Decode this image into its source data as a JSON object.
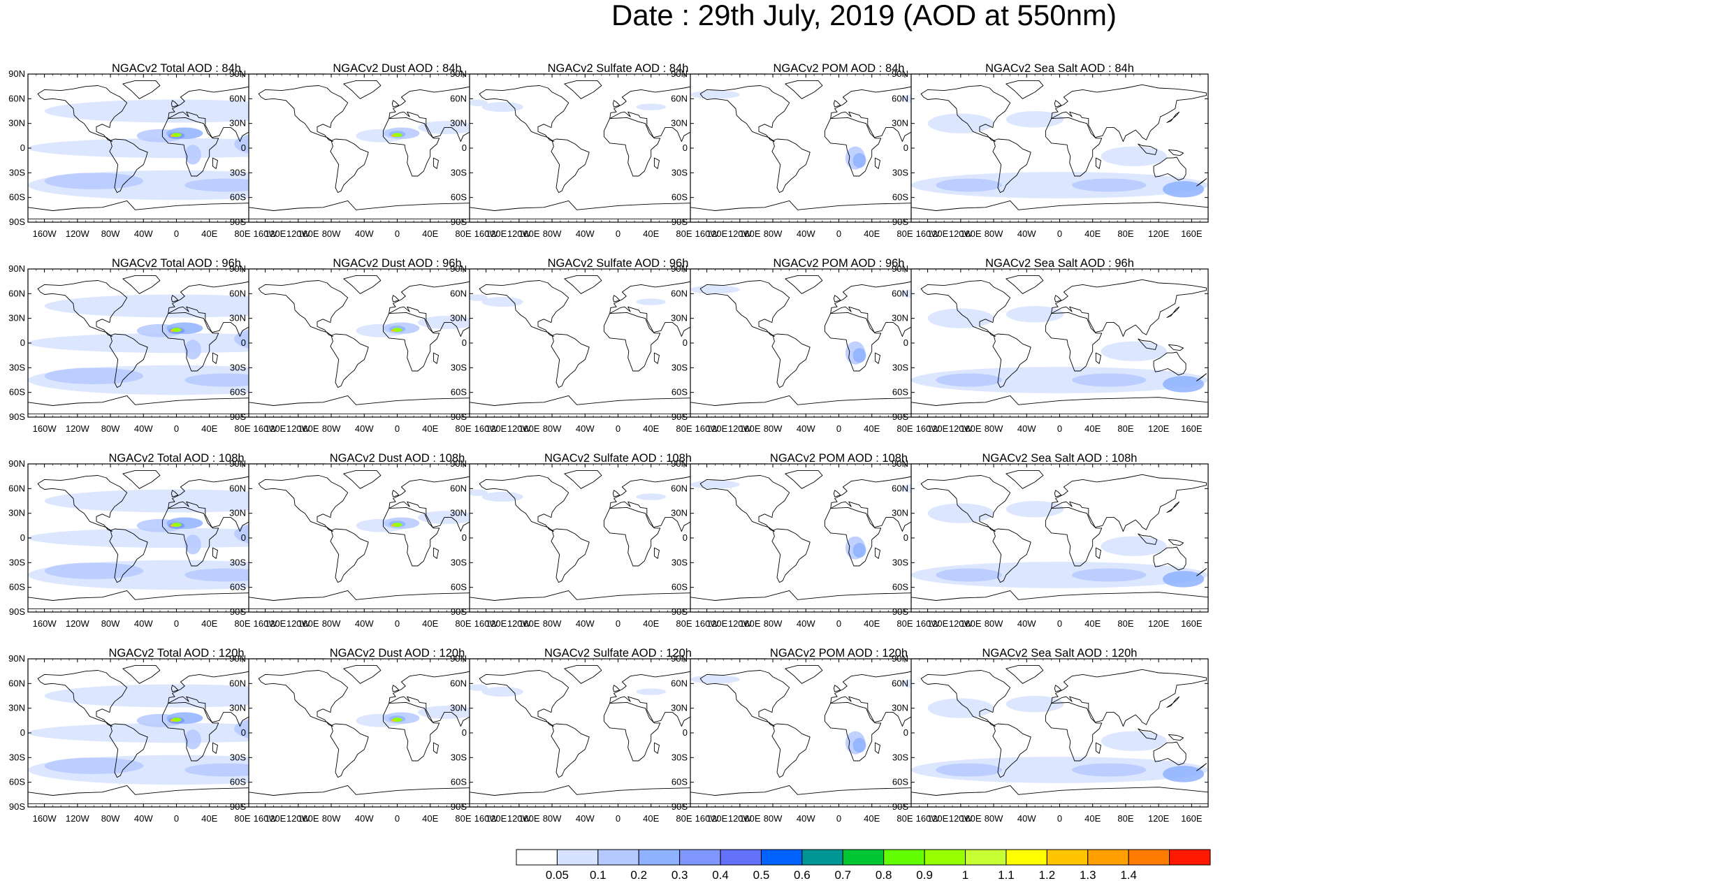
{
  "title": "Date : 29th July, 2019 (AOD at 550nm)",
  "lat_labels": [
    "90N",
    "60N",
    "30N",
    "0",
    "30S",
    "60S",
    "90S"
  ],
  "lon_labels": [
    "160W",
    "120W",
    "80W",
    "40W",
    "0",
    "40E",
    "80E",
    "120E",
    "160E"
  ],
  "rows": [
    "84h",
    "96h",
    "108h",
    "120h"
  ],
  "panel_titles": [
    [
      "NGACv2 Total AOD : 84h",
      "NGACv2 Dust AOD : 84h",
      "NGACv2 Sulfate AOD : 84h",
      "NGACv2 POM AOD : 84h",
      "NGACv2 Sea Salt AOD : 84h"
    ],
    [
      "NGACv2 Total AOD : 96h",
      "NGACv2 Dust AOD : 96h",
      "NGACv2 Sulfate AOD : 96h",
      "NGACv2 POM AOD : 96h",
      "NGACv2 Sea Salt AOD : 96h"
    ],
    [
      "NGACv2 Total AOD : 108h",
      "NGACv2 Dust AOD : 108h",
      "NGACv2 Sulfate AOD : 108h",
      "NGACv2 POM AOD : 108h",
      "NGACv2 Sea Salt AOD : 108h"
    ],
    [
      "NGACv2 Total AOD : 120h",
      "NGACv2 Dust AOD : 120h",
      "NGACv2 Sulfate AOD : 120h",
      "NGACv2 POM AOD : 120h",
      "NGACv2 Sea Salt  AOD : 120h"
    ]
  ],
  "colorbar": {
    "labels": [
      "0.05",
      "0.1",
      "0.2",
      "0.3",
      "0.4",
      "0.5",
      "0.6",
      "0.7",
      "0.8",
      "0.9",
      "1",
      "1.1",
      "1.2",
      "1.3",
      "1.4"
    ],
    "colors": [
      "#ffffff",
      "#d6e2ff",
      "#b5c9ff",
      "#8eb2ff",
      "#7f96ff",
      "#6370f8",
      "#0063ff",
      "#009696",
      "#00c633",
      "#63ff00",
      "#96ff00",
      "#c6ff33",
      "#ffff00",
      "#ffc600",
      "#ffa000",
      "#ff7c00",
      "#ff1900"
    ]
  },
  "colors": {
    "land_line": "#000000",
    "frame": "#000000"
  }
}
